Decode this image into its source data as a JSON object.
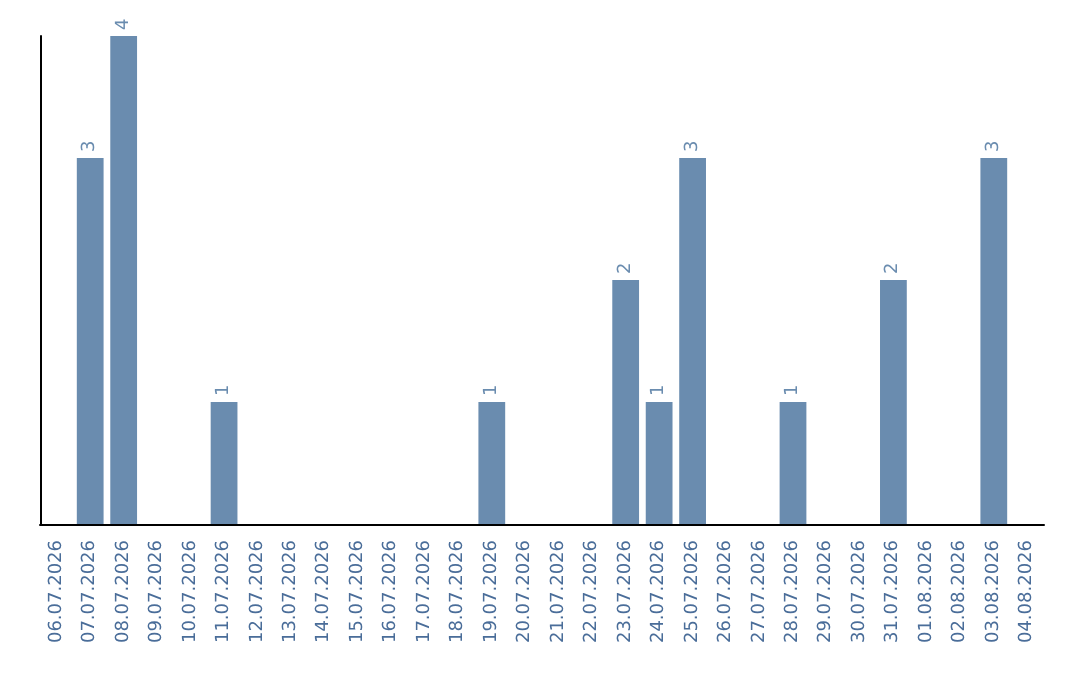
{
  "chart_data": {
    "type": "bar",
    "categories": [
      "06.07.2026",
      "07.07.2026",
      "08.07.2026",
      "09.07.2026",
      "10.07.2026",
      "11.07.2026",
      "12.07.2026",
      "13.07.2026",
      "14.07.2026",
      "15.07.2026",
      "16.07.2026",
      "17.07.2026",
      "18.07.2026",
      "19.07.2026",
      "20.07.2026",
      "21.07.2026",
      "22.07.2026",
      "23.07.2026",
      "24.07.2026",
      "25.07.2026",
      "26.07.2026",
      "27.07.2026",
      "28.07.2026",
      "29.07.2026",
      "30.07.2026",
      "31.07.2026",
      "01.08.2026",
      "02.08.2026",
      "03.08.2026",
      "04.08.2026"
    ],
    "values": [
      null,
      3,
      4,
      null,
      null,
      1,
      null,
      null,
      null,
      null,
      null,
      null,
      null,
      1,
      null,
      null,
      null,
      2,
      1,
      3,
      null,
      null,
      1,
      null,
      null,
      2,
      null,
      null,
      3,
      null
    ],
    "color": "#6a8caf",
    "data_labels": true,
    "tick_labels": "x"
  }
}
